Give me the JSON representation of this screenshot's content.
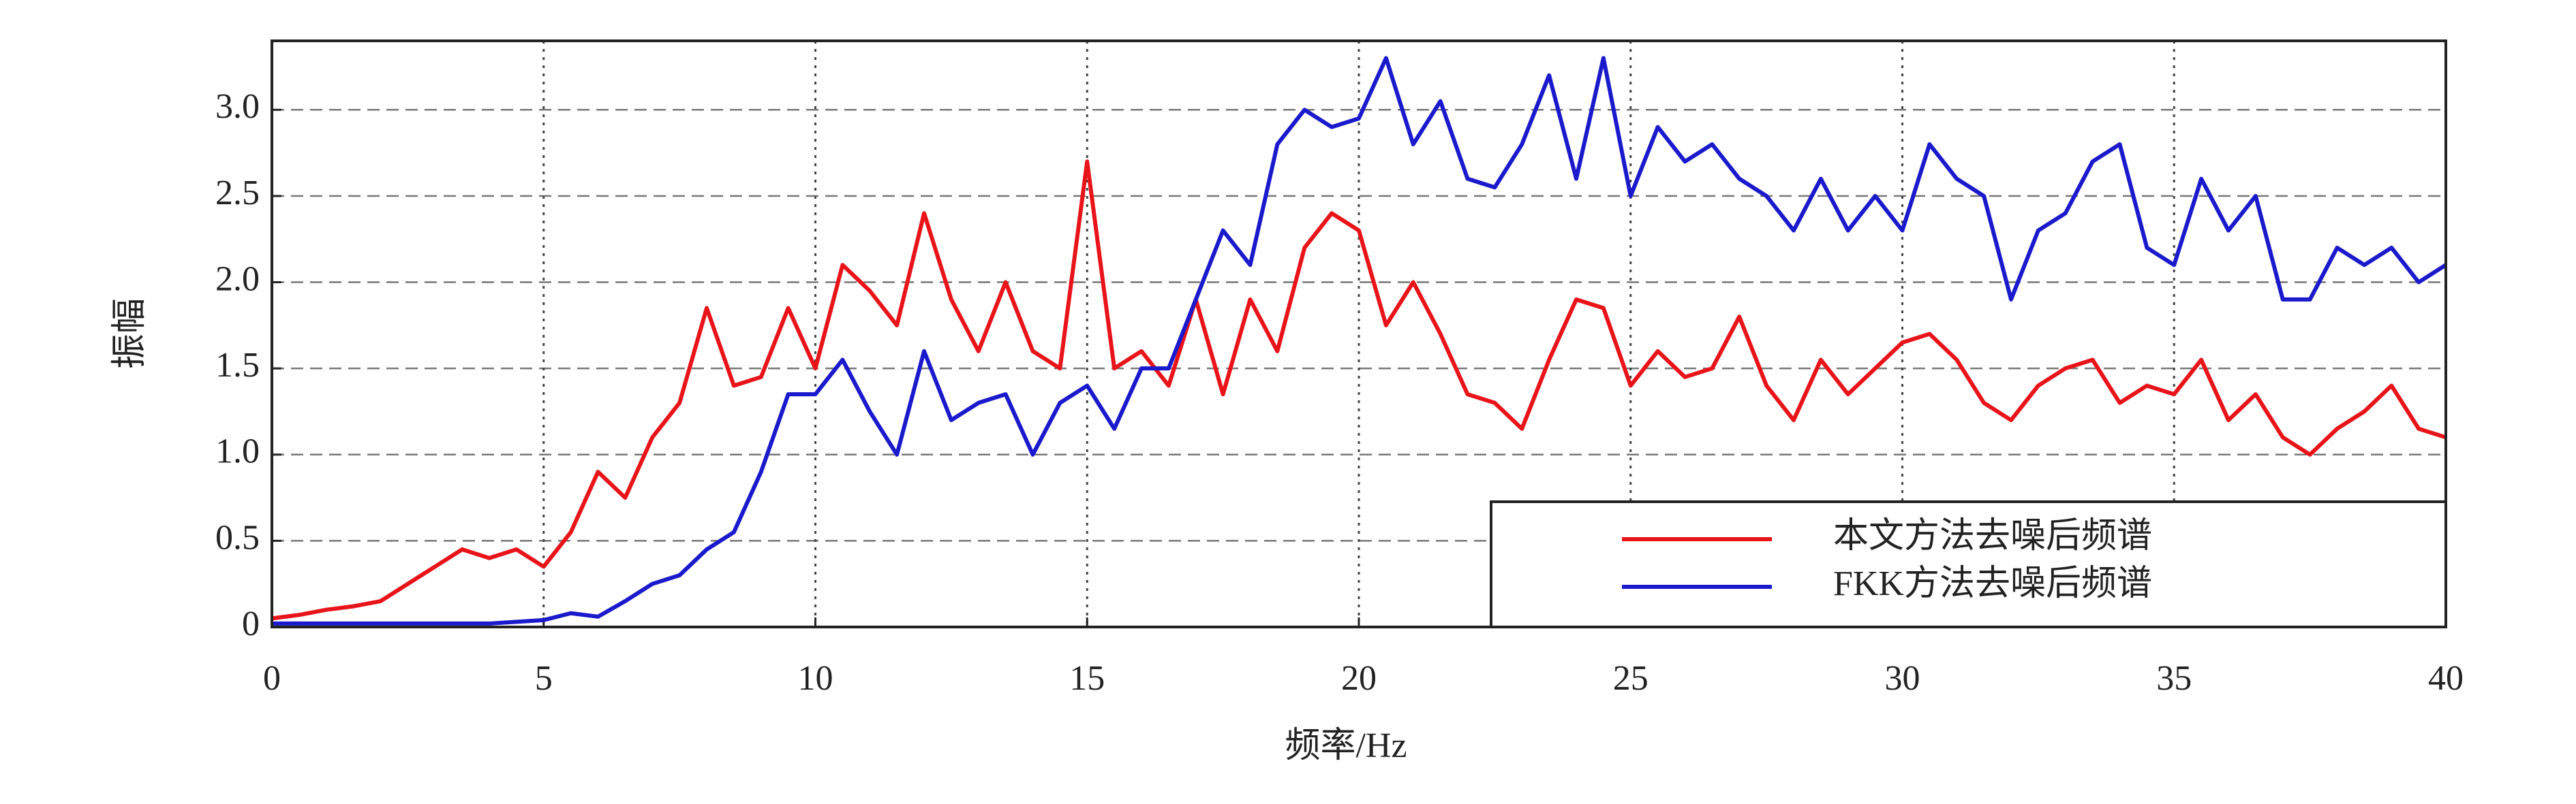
{
  "chart_data": {
    "type": "line",
    "xlabel": "频率/Hz",
    "ylabel": "振幅",
    "x": [
      0,
      0.5,
      1,
      1.5,
      2,
      2.5,
      3,
      3.5,
      4,
      4.5,
      5,
      5.5,
      6,
      6.5,
      7,
      7.5,
      8,
      8.5,
      9,
      9.5,
      10,
      10.5,
      11,
      11.5,
      12,
      12.5,
      13,
      13.5,
      14,
      14.5,
      15,
      15.5,
      16,
      16.5,
      17,
      17.5,
      18,
      18.5,
      19,
      19.5,
      20,
      20.5,
      21,
      21.5,
      22,
      22.5,
      23,
      23.5,
      24,
      24.5,
      25,
      25.5,
      26,
      26.5,
      27,
      27.5,
      28,
      28.5,
      29,
      29.5,
      30,
      30.5,
      31,
      31.5,
      32,
      32.5,
      33,
      33.5,
      34,
      34.5,
      35,
      35.5,
      36,
      36.5,
      37,
      37.5,
      38,
      38.5,
      39,
      39.5,
      40
    ],
    "series": [
      {
        "name": "本文方法去噪后频谱",
        "color": "#e8141a",
        "values": [
          0.05,
          0.07,
          0.1,
          0.12,
          0.15,
          0.25,
          0.35,
          0.45,
          0.4,
          0.45,
          0.35,
          0.55,
          0.9,
          0.75,
          1.1,
          1.3,
          1.85,
          1.4,
          1.45,
          1.85,
          1.5,
          2.1,
          1.95,
          1.75,
          2.4,
          1.9,
          1.6,
          2.0,
          1.6,
          1.5,
          2.7,
          1.5,
          1.6,
          1.4,
          1.9,
          1.35,
          1.9,
          1.6,
          2.2,
          2.4,
          2.3,
          1.75,
          2.0,
          1.7,
          1.35,
          1.3,
          1.15,
          1.55,
          1.9,
          1.85,
          1.4,
          1.6,
          1.45,
          1.5,
          1.8,
          1.4,
          1.2,
          1.55,
          1.35,
          1.5,
          1.65,
          1.7,
          1.55,
          1.3,
          1.2,
          1.4,
          1.5,
          1.55,
          1.3,
          1.4,
          1.35,
          1.55,
          1.2,
          1.35,
          1.1,
          1.0,
          1.15,
          1.25,
          1.4,
          1.15,
          1.1
        ]
      },
      {
        "name": "FKK方法去噪后频谱",
        "color": "#1a1acc",
        "values": [
          0.02,
          0.02,
          0.02,
          0.02,
          0.02,
          0.02,
          0.02,
          0.02,
          0.02,
          0.03,
          0.04,
          0.08,
          0.06,
          0.15,
          0.25,
          0.3,
          0.45,
          0.55,
          0.9,
          1.35,
          1.35,
          1.55,
          1.25,
          1.0,
          1.6,
          1.2,
          1.3,
          1.35,
          1.0,
          1.3,
          1.4,
          1.15,
          1.5,
          1.5,
          1.9,
          2.3,
          2.1,
          2.8,
          3.0,
          2.9,
          2.95,
          3.3,
          2.8,
          3.05,
          2.6,
          2.55,
          2.8,
          3.2,
          2.6,
          3.3,
          2.5,
          2.9,
          2.7,
          2.8,
          2.6,
          2.5,
          2.3,
          2.6,
          2.3,
          2.5,
          2.3,
          2.8,
          2.6,
          2.5,
          1.9,
          2.3,
          2.4,
          2.7,
          2.8,
          2.2,
          2.1,
          2.6,
          2.3,
          2.5,
          1.9,
          1.9,
          2.2,
          2.1,
          2.2,
          2.0,
          2.1
        ]
      }
    ],
    "xlim": [
      0,
      40
    ],
    "xticks": [
      0,
      5,
      10,
      15,
      20,
      25,
      30,
      35,
      40
    ],
    "ylim": [
      0,
      3.4
    ],
    "yticks": [
      0,
      0.5,
      {
        "value": 1,
        "label": "1.0"
      },
      1.5,
      {
        "value": 2,
        "label": "2.0"
      },
      2.5,
      {
        "value": 3,
        "label": "3.0"
      }
    ],
    "grid": true,
    "legend": "lower right"
  }
}
